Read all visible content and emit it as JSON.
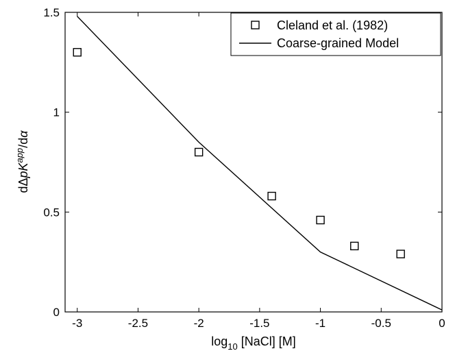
{
  "chart_data": {
    "type": "scatter",
    "xlabel": {
      "prefix": "log",
      "subscript": "10",
      "suffix": " [NaCl] [M]"
    },
    "ylabel": {
      "prefix": "d",
      "delta": "Δ",
      "pk": "pK",
      "sup": "app",
      "slash": "/d",
      "alpha": "α"
    },
    "xlim": [
      -3.1,
      0
    ],
    "ylim": [
      0,
      1.5
    ],
    "x_ticks": [
      {
        "value": -3,
        "label": "-3"
      },
      {
        "value": -2.5,
        "label": "-2.5"
      },
      {
        "value": -2,
        "label": "-2"
      },
      {
        "value": -1.5,
        "label": "-1.5"
      },
      {
        "value": -1,
        "label": "-1"
      },
      {
        "value": -0.5,
        "label": "-0.5"
      },
      {
        "value": 0,
        "label": "0"
      }
    ],
    "y_ticks": [
      {
        "value": 0,
        "label": "0"
      },
      {
        "value": 0.5,
        "label": "0.5"
      },
      {
        "value": 1,
        "label": "1"
      },
      {
        "value": 1.5,
        "label": "1.5"
      }
    ],
    "grid": false,
    "legend_position": "top-right",
    "series": [
      {
        "name": "Cleland et al. (1982)",
        "kind": "markers",
        "marker": "open-square",
        "x": [
          -3.0,
          -2.0,
          -1.4,
          -1.0,
          -0.72,
          -0.34
        ],
        "y": [
          1.3,
          0.8,
          0.58,
          0.46,
          0.33,
          0.29
        ]
      },
      {
        "name": "Coarse-grained Model",
        "kind": "line",
        "x": [
          -3.0,
          -2.0,
          -1.0,
          0.0
        ],
        "y": [
          1.48,
          0.85,
          0.3,
          0.01
        ]
      }
    ],
    "colors": {
      "axis": "#000000",
      "series": "#000000",
      "background": "#ffffff"
    }
  }
}
